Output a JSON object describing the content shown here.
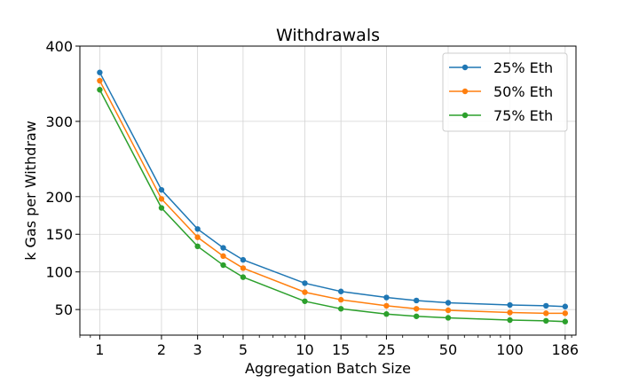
{
  "chart_data": {
    "type": "line",
    "title": "Withdrawals",
    "xlabel": "Aggregation Batch Size",
    "ylabel": "k Gas per Withdraw",
    "x_scale": "log",
    "y_scale": "linear",
    "xlim": [
      0.8,
      210
    ],
    "ylim": [
      16,
      400
    ],
    "xticks": [
      1,
      2,
      3,
      5,
      10,
      15,
      25,
      50,
      100,
      186
    ],
    "xtick_labels": [
      "1",
      "2",
      "3",
      "5",
      "10",
      "15",
      "25",
      "50",
      "100",
      "186"
    ],
    "yticks": [
      50,
      100,
      150,
      200,
      300,
      400
    ],
    "ytick_labels": [
      "50",
      "100",
      "150",
      "200",
      "300",
      "400"
    ],
    "grid": true,
    "legend_position": "top-right",
    "x": [
      1,
      2,
      3,
      4,
      5,
      10,
      15,
      25,
      35,
      50,
      100,
      150,
      186
    ],
    "series": [
      {
        "name": "25% Eth",
        "color": "#1f77b4",
        "values": [
          365,
          209,
          157,
          132,
          116,
          85,
          74,
          66,
          62,
          59,
          56,
          55,
          54
        ]
      },
      {
        "name": "50% Eth",
        "color": "#ff7f0e",
        "values": [
          354,
          197,
          146,
          121,
          105,
          73,
          63,
          55,
          51,
          49,
          46,
          45,
          45
        ]
      },
      {
        "name": "75% Eth",
        "color": "#2ca02c",
        "values": [
          342,
          185,
          134,
          109,
          93,
          61,
          51,
          44,
          41,
          39,
          36,
          35,
          34
        ]
      }
    ]
  }
}
